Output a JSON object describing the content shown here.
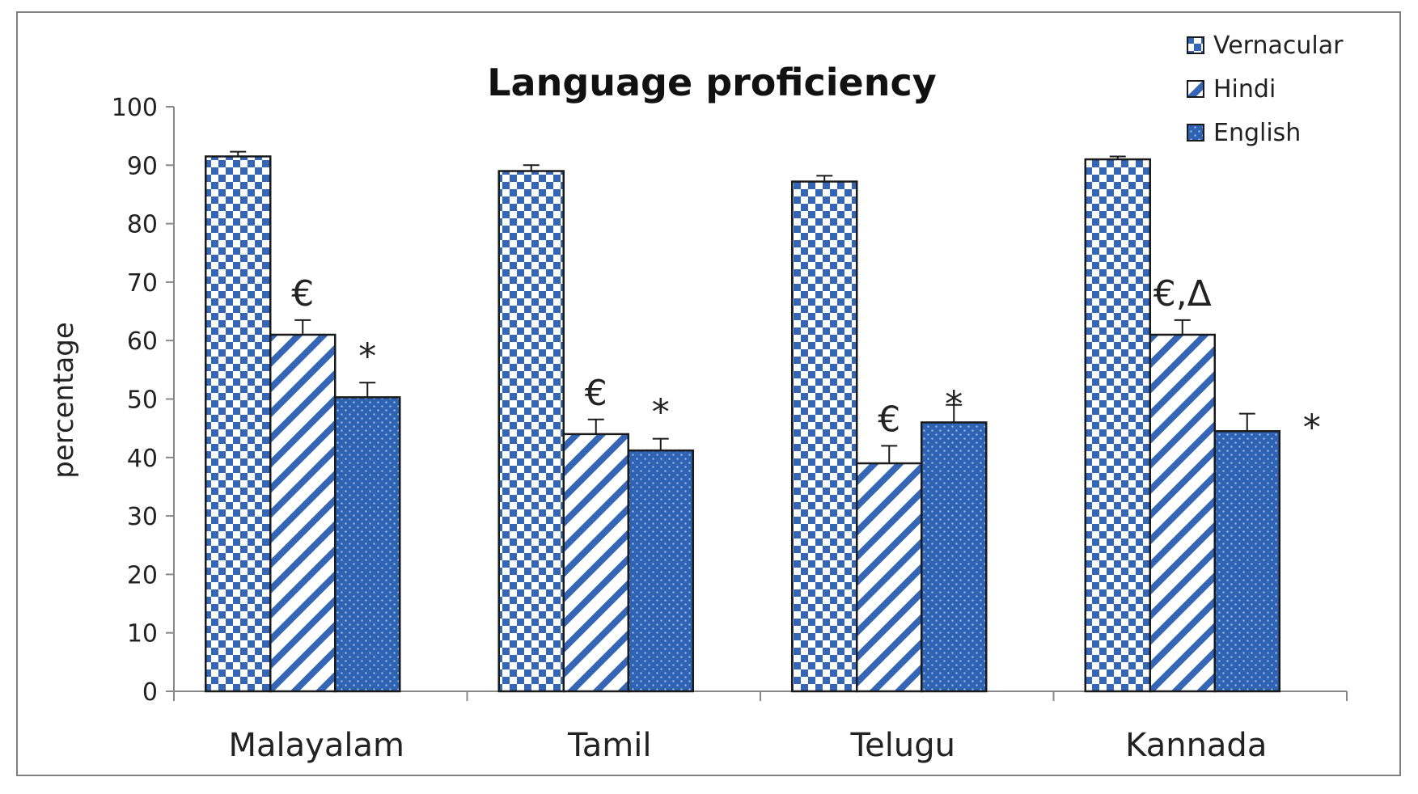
{
  "chart_data": {
    "type": "bar",
    "title": "Language proficiency",
    "ylabel": "percentage",
    "xlabel": "",
    "ylim": [
      0,
      100
    ],
    "yticks": [
      0,
      10,
      20,
      30,
      40,
      50,
      60,
      70,
      80,
      90,
      100
    ],
    "categories": [
      "Malayalam",
      "Tamil",
      "Telugu",
      "Kannada"
    ],
    "legend_position": "top-right",
    "series": [
      {
        "name": "Vernacular",
        "pattern": "checker",
        "color": "#2e64b4",
        "values": [
          91.5,
          89,
          87.2,
          91
        ],
        "errors": [
          0.8,
          1,
          1,
          0.5
        ]
      },
      {
        "name": "Hindi",
        "pattern": "diagonal",
        "color": "#2e64b4",
        "values": [
          61,
          44,
          39,
          61
        ],
        "errors": [
          2.5,
          2.5,
          3,
          2.5
        ]
      },
      {
        "name": "English",
        "pattern": "dots",
        "color": "#2e64b4",
        "values": [
          50.3,
          41.2,
          46,
          44.5
        ],
        "errors": [
          2.5,
          2,
          3,
          3
        ]
      }
    ],
    "annotations": [
      {
        "category": 0,
        "series": 1,
        "text": "€"
      },
      {
        "category": 0,
        "series": 2,
        "text": "*"
      },
      {
        "category": 1,
        "series": 1,
        "text": "€"
      },
      {
        "category": 1,
        "series": 2,
        "text": "*"
      },
      {
        "category": 2,
        "series": 1,
        "text": "€"
      },
      {
        "category": 2,
        "series": 2,
        "text": "*"
      },
      {
        "category": 3,
        "series": 1,
        "text": "€,Δ"
      },
      {
        "category": 3,
        "series": 2,
        "text": "*"
      }
    ]
  }
}
